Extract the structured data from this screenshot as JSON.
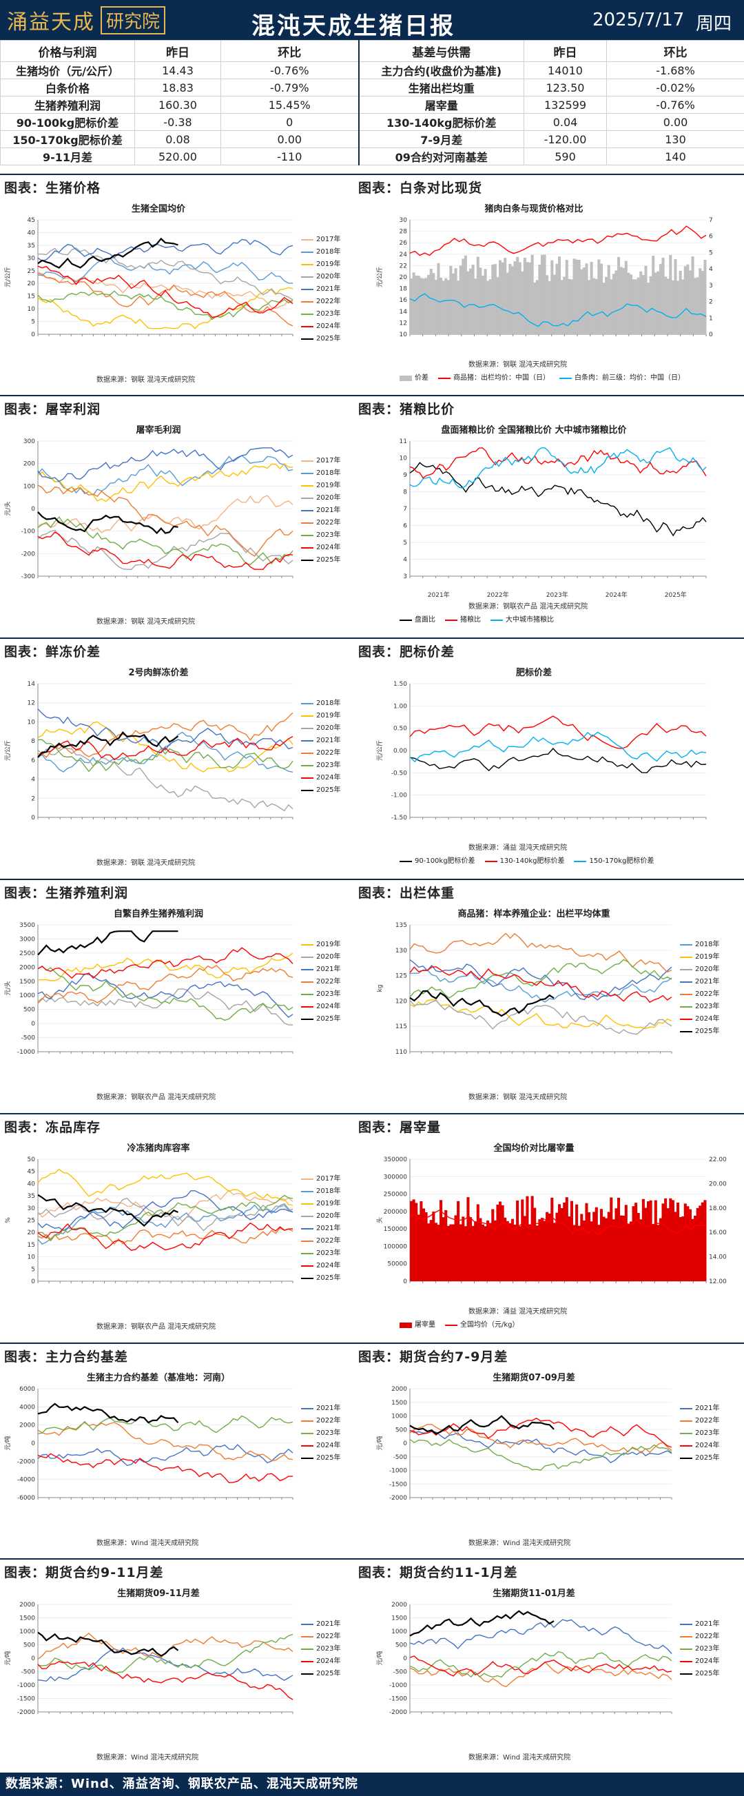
{
  "header": {
    "logo_main": "涌益天成",
    "logo_box": "研究院",
    "title": "混沌天成生猪日报",
    "date": "2025/7/17",
    "weekday": "周四"
  },
  "table": {
    "head": [
      "价格与利润",
      "昨日",
      "环比",
      "基差与供需",
      "昨日",
      "环比"
    ],
    "rows": [
      [
        "生猪均价（元/公斤）",
        "14.43",
        "-0.76%",
        "主力合约(收盘价为基准)",
        "14010",
        "-1.68%"
      ],
      [
        "白条价格",
        "18.83",
        "-0.79%",
        "生猪出栏均重",
        "123.50",
        "-0.02%"
      ],
      [
        "生猪养殖利润",
        "160.30",
        "15.45%",
        "屠宰量",
        "132599",
        "-0.76%"
      ],
      [
        "90-100kg肥标价差",
        "-0.38",
        "0",
        "130-140kg肥标价差",
        "0.04",
        "0.00"
      ],
      [
        "150-170kg肥标价差",
        "0.08",
        "0.00",
        "7-9月差",
        "-120.00",
        "130"
      ],
      [
        "9-11月差",
        "520.00",
        "-110",
        "09合约对河南基差",
        "590",
        "140"
      ]
    ]
  },
  "bands": [
    [
      "图表：生猪价格",
      "图表：白条对比现货"
    ],
    [
      "图表：屠宰利润",
      "图表：猪粮比价"
    ],
    [
      "图表：鲜冻价差",
      "图表：肥标价差"
    ],
    [
      "图表：生猪养殖利润",
      "图表：出栏体重"
    ],
    [
      "图表：冻品库存",
      "图表：屠宰量"
    ],
    [
      "图表：主力合约基差",
      "图表：期货合约7-9月差"
    ],
    [
      "图表：期货合约9-11月差",
      "图表：期货合约11-1月差"
    ]
  ],
  "charts": [
    {
      "title": "生猪全国均价",
      "source": "数据来源：钢联  混沌天成研究院",
      "ylabel": "元/公斤",
      "ylim": [
        0,
        45
      ],
      "yticks": [
        "0",
        "5",
        "10",
        "15",
        "20",
        "25",
        "30",
        "35",
        "40",
        "45"
      ],
      "legend": [
        "2017年",
        "2018年",
        "2019年",
        "2020年",
        "2021年",
        "2022年",
        "2023年",
        "2024年",
        "2025年"
      ]
    },
    {
      "title": "猪肉白条与现货价格对比",
      "source": "数据来源：钢联  混沌天成研究院",
      "ylabel": "元/公斤",
      "ylim": [
        10,
        30
      ],
      "yticks": [
        "10",
        "12",
        "14",
        "16",
        "18",
        "20",
        "22",
        "24",
        "26",
        "28",
        "30"
      ],
      "y2ticks": [
        "0",
        "1",
        "2",
        "3",
        "4",
        "5",
        "6",
        "7"
      ],
      "legend": [
        "价差",
        "商品猪：出栏均价：中国（日）",
        "白条肉：前三级：均价：中国（日）"
      ]
    },
    {
      "title": "屠宰毛利润",
      "source": "数据来源：钢联  混沌天成研究院",
      "ylabel": "元/头",
      "ylim": [
        -300,
        300
      ],
      "yticks": [
        "-300",
        "-200",
        "-100",
        "0",
        "100",
        "200",
        "300"
      ],
      "legend": [
        "2017年",
        "2018年",
        "2019年",
        "2020年",
        "2021年",
        "2022年",
        "2023年",
        "2024年",
        "2025年"
      ]
    },
    {
      "title": "盘面猪粮比价  全国猪粮比价  大中城市猪粮比价",
      "source": "数据来源：钢联农产品  混沌天成研究院",
      "ylabel": "",
      "ylim": [
        3,
        11
      ],
      "yticks": [
        "3",
        "4",
        "5",
        "6",
        "7",
        "8",
        "9",
        "10",
        "11"
      ],
      "legend": [
        "盘面比",
        "猪粮比",
        "大中城市猪粮比"
      ],
      "xyears": [
        "2021年",
        "2022年",
        "2023年",
        "2024年",
        "2025年"
      ]
    },
    {
      "title": "2号肉鲜冻价差",
      "source": "数据来源：钢联  混沌天成研究院",
      "ylabel": "元/公斤",
      "ylim": [
        0,
        14
      ],
      "yticks": [
        "0",
        "2",
        "4",
        "6",
        "8",
        "10",
        "12",
        "14"
      ],
      "legend": [
        "2018年",
        "2019年",
        "2020年",
        "2021年",
        "2022年",
        "2023年",
        "2024年",
        "2025年"
      ]
    },
    {
      "title": "肥标价差",
      "source": "数据来源：涌益  混沌天成研究院",
      "ylabel": "元/公斤",
      "ylim": [
        -1.5,
        1.5
      ],
      "yticks": [
        "-1.50",
        "-1.00",
        "-0.50",
        "0.00",
        "0.50",
        "1.00",
        "1.50"
      ],
      "legend": [
        "90-100kg肥标价差",
        "130-140kg肥标价差",
        "150-170kg肥标价差"
      ]
    },
    {
      "title": "自繁自养生猪养殖利润",
      "source": "数据来源：钢联农产品  混沌天成研究院",
      "ylabel": "元/头",
      "ylim": [
        -1000,
        3500
      ],
      "yticks": [
        "-1000",
        "-500",
        "0",
        "500",
        "1000",
        "1500",
        "2000",
        "2500",
        "3000",
        "3500"
      ],
      "legend": [
        "2019年",
        "2020年",
        "2021年",
        "2022年",
        "2023年",
        "2024年",
        "2025年"
      ]
    },
    {
      "title": "商品猪：样本养殖企业：出栏平均体重",
      "source": "数据来源：钢联  混沌天成研究院",
      "ylabel": "kg",
      "ylim": [
        110,
        135
      ],
      "yticks": [
        "110",
        "115",
        "120",
        "125",
        "130",
        "135"
      ],
      "legend": [
        "2018年",
        "2019年",
        "2020年",
        "2021年",
        "2022年",
        "2023年",
        "2024年",
        "2025年"
      ]
    },
    {
      "title": "冷冻猪肉库容率",
      "source": "数据来源：钢联农产品  混沌天成研究院",
      "ylabel": "%",
      "ylim": [
        0,
        50
      ],
      "yticks": [
        "0",
        "5",
        "10",
        "15",
        "20",
        "25",
        "30",
        "35",
        "40",
        "45",
        "50"
      ],
      "legend": [
        "2017年",
        "2018年",
        "2019年",
        "2020年",
        "2021年",
        "2022年",
        "2023年",
        "2024年",
        "2025年"
      ]
    },
    {
      "title": "全国均价对比屠宰量",
      "source": "数据来源：涌益  混沌天成研究院",
      "ylabel": "头",
      "ylim": [
        0,
        350000
      ],
      "yticks": [
        "0",
        "50000",
        "100000",
        "150000",
        "200000",
        "250000",
        "300000",
        "350000"
      ],
      "y2ticks": [
        "12.00",
        "14.00",
        "16.00",
        "18.00",
        "20.00",
        "22.00"
      ],
      "legend": [
        "屠宰量",
        "全国均价（元/kg）"
      ]
    },
    {
      "title": "生猪主力合约基差（基准地：河南）",
      "source": "数据来源：Wind  混沌天成研究院",
      "ylabel": "元/吨",
      "ylim": [
        -6000,
        6000
      ],
      "yticks": [
        "-6000",
        "-4000",
        "-2000",
        "0",
        "2000",
        "4000",
        "6000"
      ],
      "legend": [
        "2021年",
        "2022年",
        "2023年",
        "2024年",
        "2025年"
      ]
    },
    {
      "title": "生猪期货07-09月差",
      "source": "数据来源：Wind  混沌天成研究院",
      "ylabel": "元/吨",
      "ylim": [
        -2000,
        2000
      ],
      "yticks": [
        "-2000",
        "-1500",
        "-1000",
        "-500",
        "0",
        "500",
        "1000",
        "1500",
        "2000"
      ],
      "legend": [
        "2021年",
        "2022年",
        "2023年",
        "2024年",
        "2025年"
      ]
    },
    {
      "title": "生猪期货09-11月差",
      "source": "数据来源：Wind  混沌天成研究院",
      "ylabel": "元/吨",
      "ylim": [
        -2000,
        2000
      ],
      "yticks": [
        "-2000",
        "-1500",
        "-1000",
        "-500",
        "0",
        "500",
        "1000",
        "1500",
        "2000"
      ],
      "legend": [
        "2021年",
        "2022年",
        "2023年",
        "2024年",
        "2025年"
      ]
    },
    {
      "title": "生猪期货11-01月差",
      "source": "数据来源：Wind  混沌天成研究院",
      "ylabel": "元/吨",
      "ylim": [
        -2000,
        2000
      ],
      "yticks": [
        "-2000",
        "-1500",
        "-1000",
        "-500",
        "0",
        "500",
        "1000",
        "1500",
        "2000"
      ],
      "legend": [
        "2021年",
        "2022年",
        "2023年",
        "2024年",
        "2025年"
      ]
    }
  ],
  "colors": {
    "2017年": "#f4b183",
    "2018年": "#5b9bd5",
    "2019年": "#ffc000",
    "2020年": "#a5a5a5",
    "2021年": "#4472c4",
    "2022年": "#ed7d31",
    "2023年": "#70ad47",
    "2024年": "#ff0000",
    "2025年": "#000000"
  },
  "footer": "数据来源：Wind、涌益咨询、钢联农产品、混沌天成研究院"
}
